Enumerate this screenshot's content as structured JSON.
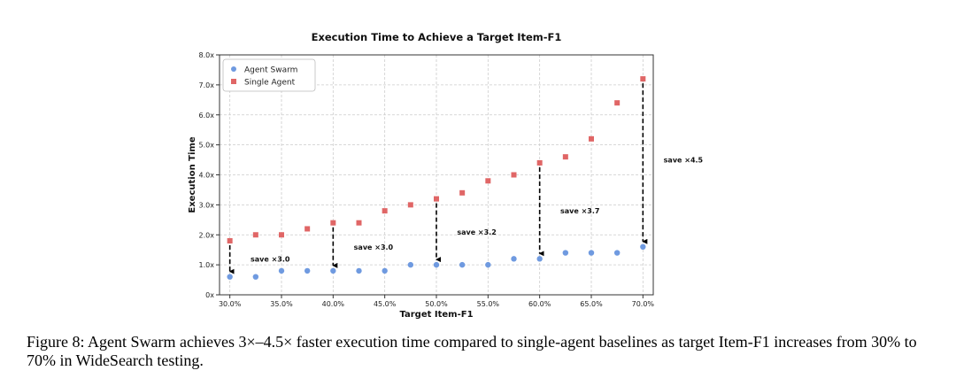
{
  "chart_data": {
    "type": "scatter",
    "title": "Execution Time to Achieve a Target Item-F1",
    "xlabel": "Target Item-F1",
    "ylabel": "Execution Time",
    "xlim": [
      29.0,
      71.0
    ],
    "ylim": [
      0,
      8.0
    ],
    "x_ticks": [
      30,
      35,
      40,
      45,
      50,
      55,
      60,
      65,
      70
    ],
    "x_tick_labels": [
      "30.0%",
      "35.0%",
      "40.0%",
      "45.0%",
      "50.0%",
      "55.0%",
      "60.0%",
      "65.0%",
      "70.0%"
    ],
    "y_ticks": [
      0,
      1,
      2,
      3,
      4,
      5,
      6,
      7,
      8
    ],
    "y_tick_labels": [
      "0x",
      "1.0x",
      "2.0x",
      "3.0x",
      "4.0x",
      "5.0x",
      "6.0x",
      "7.0x",
      "8.0x"
    ],
    "grid": true,
    "legend_position": "top-left",
    "series": [
      {
        "name": "Agent Swarm",
        "marker": "circle",
        "color": "#6f9ae0",
        "x": [
          30,
          32.5,
          35,
          37.5,
          40,
          42.5,
          45,
          47.5,
          50,
          52.5,
          55,
          57.5,
          60,
          62.5,
          65,
          67.5,
          70
        ],
        "y": [
          0.6,
          0.6,
          0.8,
          0.8,
          0.8,
          0.8,
          0.8,
          1.0,
          1.0,
          1.0,
          1.0,
          1.2,
          1.2,
          1.4,
          1.4,
          1.4,
          1.6
        ]
      },
      {
        "name": "Single Agent",
        "marker": "square",
        "color": "#e06666",
        "x": [
          30,
          32.5,
          35,
          37.5,
          40,
          42.5,
          45,
          47.5,
          50,
          52.5,
          55,
          57.5,
          60,
          62.5,
          65,
          67.5,
          70
        ],
        "y": [
          1.8,
          2.0,
          2.0,
          2.2,
          2.4,
          2.4,
          2.8,
          3.0,
          3.2,
          3.4,
          3.8,
          4.0,
          4.4,
          4.6,
          5.2,
          6.4,
          7.2
        ]
      }
    ],
    "annotations": [
      {
        "x": 30,
        "from": 1.8,
        "to": 0.6,
        "label": "save ×3.0",
        "label_x": 32,
        "label_y": 1.2
      },
      {
        "x": 40,
        "from": 2.4,
        "to": 0.8,
        "label": "save ×3.0",
        "label_x": 42,
        "label_y": 1.6
      },
      {
        "x": 50,
        "from": 3.2,
        "to": 1.0,
        "label": "save ×3.2",
        "label_x": 52,
        "label_y": 2.1
      },
      {
        "x": 60,
        "from": 4.4,
        "to": 1.2,
        "label": "save ×3.7",
        "label_x": 62,
        "label_y": 2.8
      },
      {
        "x": 70,
        "from": 7.2,
        "to": 1.6,
        "label": "save ×4.5",
        "label_x": 72,
        "label_y": 4.5
      }
    ]
  },
  "caption": {
    "text": "Figure 8: Agent Swarm achieves 3×–4.5× faster execution time compared to single-agent baselines as target Item-F1 increases from 30% to 70% in WideSearch testing."
  }
}
